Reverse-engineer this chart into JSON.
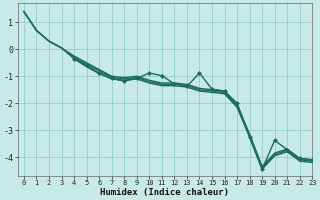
{
  "background_color": "#c8eae7",
  "grid_color": "#8cc8c0",
  "line_color": "#1a6b60",
  "x_label": "Humidex (Indice chaleur)",
  "xlim": [
    -0.5,
    23
  ],
  "ylim": [
    -4.7,
    1.7
  ],
  "yticks": [
    1,
    0,
    -1,
    -2,
    -3,
    -4
  ],
  "xticks": [
    0,
    1,
    2,
    3,
    4,
    5,
    6,
    7,
    8,
    9,
    10,
    11,
    12,
    13,
    14,
    15,
    16,
    17,
    18,
    19,
    20,
    21,
    22,
    23
  ],
  "series": [
    {
      "x": [
        0,
        1,
        2,
        3,
        4,
        5,
        6,
        7,
        8,
        9,
        10,
        11,
        12,
        13,
        14,
        15,
        16,
        17,
        18,
        19,
        20,
        21,
        22,
        23
      ],
      "y": [
        1.4,
        0.7,
        0.3,
        0.05,
        -0.25,
        -0.5,
        -0.75,
        -1.0,
        -1.05,
        -1.0,
        -1.15,
        -1.25,
        -1.25,
        -1.3,
        -1.45,
        -1.5,
        -1.55,
        -2.05,
        -3.15,
        -4.35,
        -3.85,
        -3.7,
        -4.05,
        -4.1
      ],
      "markers": false,
      "lw": 1.0
    },
    {
      "x": [
        0,
        1,
        2,
        3,
        4,
        5,
        6,
        7,
        8,
        9,
        10,
        11,
        12,
        13,
        14,
        15,
        16,
        17,
        18,
        19,
        20,
        21,
        22,
        23
      ],
      "y": [
        1.4,
        0.7,
        0.3,
        0.05,
        -0.3,
        -0.55,
        -0.8,
        -1.05,
        -1.1,
        -1.05,
        -1.2,
        -1.3,
        -1.3,
        -1.35,
        -1.5,
        -1.55,
        -1.6,
        -2.1,
        -3.2,
        -4.4,
        -3.9,
        -3.75,
        -4.1,
        -4.15
      ],
      "markers": false,
      "lw": 1.0
    },
    {
      "x": [
        0,
        1,
        2,
        3,
        4,
        5,
        6,
        7,
        8,
        9,
        10,
        11,
        12,
        13,
        14,
        15,
        16,
        17,
        18,
        19,
        20,
        21,
        22,
        23
      ],
      "y": [
        1.4,
        0.7,
        0.3,
        0.05,
        -0.35,
        -0.65,
        -0.9,
        -1.1,
        -1.15,
        -1.1,
        -1.25,
        -1.35,
        -1.35,
        -1.4,
        -1.55,
        -1.6,
        -1.65,
        -2.15,
        -3.25,
        -4.45,
        -3.95,
        -3.8,
        -4.15,
        -4.2
      ],
      "markers": false,
      "lw": 1.0
    },
    {
      "x": [
        4,
        5,
        6,
        7,
        8,
        9,
        10,
        11,
        12,
        13,
        14,
        15,
        16,
        17,
        18,
        19,
        20,
        21,
        22,
        23
      ],
      "y": [
        -0.35,
        -0.6,
        -0.88,
        -1.08,
        -1.18,
        -1.08,
        -0.88,
        -0.98,
        -1.28,
        -1.38,
        -0.88,
        -1.48,
        -1.55,
        -2.0,
        -3.25,
        -4.45,
        -3.38,
        -3.72,
        -4.05,
        -4.1
      ],
      "markers": true,
      "lw": 1.0
    }
  ]
}
